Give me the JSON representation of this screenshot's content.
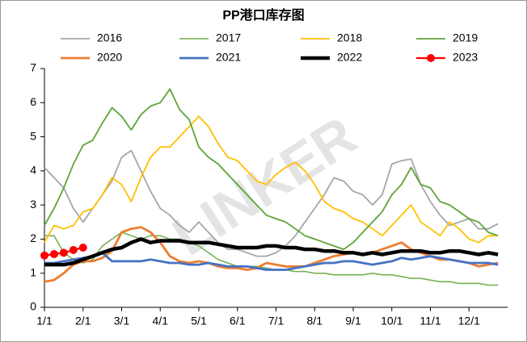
{
  "chart_data": {
    "type": "line",
    "title": "PP港口库存图",
    "watermark": "LINKER",
    "categories": [
      "1/1",
      null,
      null,
      null,
      "2/1",
      null,
      null,
      null,
      "3/1",
      null,
      null,
      null,
      "4/1",
      null,
      null,
      null,
      "5/1",
      null,
      null,
      null,
      "6/1",
      null,
      null,
      null,
      "7/1",
      null,
      null,
      null,
      "8/1",
      null,
      null,
      null,
      "9/1",
      null,
      null,
      null,
      "10/1",
      null,
      null,
      null,
      "11/1",
      null,
      null,
      null,
      "12/1",
      null,
      null,
      null
    ],
    "ylim": [
      0,
      7
    ],
    "yticks": [
      0,
      1,
      2,
      3,
      4,
      5,
      6,
      7
    ],
    "grid": false,
    "series": [
      {
        "name": "2016",
        "color": "#a6a6a6",
        "width": 1.8,
        "values": [
          4.1,
          3.8,
          3.5,
          2.9,
          2.5,
          2.9,
          3.3,
          3.7,
          4.4,
          4.6,
          4.0,
          3.4,
          2.9,
          2.7,
          2.4,
          2.2,
          2.5,
          2.2,
          1.9,
          1.7,
          1.7,
          1.6,
          1.5,
          1.5,
          1.6,
          1.8,
          2.1,
          2.5,
          2.9,
          3.3,
          3.8,
          3.7,
          3.4,
          3.3,
          3.0,
          3.3,
          4.2,
          4.3,
          4.35,
          3.6,
          3.1,
          2.7,
          2.4,
          2.5,
          2.6,
          2.3,
          2.3,
          2.45
        ]
      },
      {
        "name": "2017",
        "color": "#70ad47",
        "width": 1.5,
        "values": [
          2.1,
          2.1,
          1.6,
          1.4,
          1.3,
          1.4,
          1.8,
          2.0,
          2.2,
          2.1,
          2.0,
          2.1,
          2.1,
          2.0,
          2.0,
          1.9,
          1.8,
          1.6,
          1.4,
          1.3,
          1.2,
          1.2,
          1.2,
          1.15,
          1.1,
          1.1,
          1.05,
          1.05,
          1.0,
          1.0,
          0.95,
          0.95,
          0.95,
          0.95,
          1.0,
          0.95,
          0.95,
          0.9,
          0.85,
          0.85,
          0.8,
          0.75,
          0.75,
          0.7,
          0.7,
          0.7,
          0.65,
          0.65
        ]
      },
      {
        "name": "2018",
        "color": "#ffc000",
        "width": 1.8,
        "values": [
          1.9,
          2.4,
          2.3,
          2.4,
          2.8,
          2.9,
          3.3,
          3.8,
          3.6,
          3.1,
          3.8,
          4.4,
          4.7,
          4.7,
          5.0,
          5.3,
          5.6,
          5.3,
          4.8,
          4.4,
          4.3,
          4.0,
          3.7,
          3.6,
          3.9,
          4.1,
          4.25,
          4.0,
          3.6,
          3.1,
          2.9,
          2.8,
          2.6,
          2.5,
          2.3,
          2.1,
          2.4,
          2.7,
          3.0,
          2.5,
          2.3,
          2.1,
          2.5,
          2.3,
          2.0,
          1.9,
          2.1,
          2.1
        ]
      },
      {
        "name": "2019",
        "color": "#5da537",
        "width": 1.8,
        "values": [
          2.4,
          2.9,
          3.5,
          4.2,
          4.75,
          4.9,
          5.4,
          5.85,
          5.6,
          5.2,
          5.65,
          5.9,
          6.0,
          6.4,
          5.8,
          5.5,
          4.7,
          4.4,
          4.2,
          3.9,
          3.6,
          3.3,
          3.0,
          2.7,
          2.6,
          2.5,
          2.3,
          2.1,
          2.0,
          1.9,
          1.8,
          1.7,
          1.9,
          2.2,
          2.5,
          2.8,
          3.3,
          3.6,
          4.1,
          3.6,
          3.5,
          3.1,
          3.0,
          2.8,
          2.6,
          2.5,
          2.2,
          2.1
        ]
      },
      {
        "name": "2020",
        "color": "#ed7d31",
        "width": 2.8,
        "values": [
          0.75,
          0.8,
          1.0,
          1.25,
          1.35,
          1.35,
          1.45,
          1.65,
          2.2,
          2.3,
          2.35,
          2.2,
          1.9,
          1.5,
          1.35,
          1.3,
          1.35,
          1.3,
          1.2,
          1.15,
          1.15,
          1.1,
          1.15,
          1.3,
          1.25,
          1.2,
          1.2,
          1.2,
          1.3,
          1.4,
          1.5,
          1.55,
          1.6,
          1.55,
          1.6,
          1.7,
          1.8,
          1.9,
          1.7,
          1.6,
          1.5,
          1.4,
          1.4,
          1.35,
          1.3,
          1.2,
          1.25,
          1.3
        ]
      },
      {
        "name": "2021",
        "color": "#4472c4",
        "width": 2.8,
        "values": [
          1.3,
          1.3,
          1.35,
          1.4,
          1.45,
          1.5,
          1.6,
          1.35,
          1.35,
          1.35,
          1.35,
          1.4,
          1.35,
          1.3,
          1.3,
          1.25,
          1.25,
          1.3,
          1.25,
          1.2,
          1.2,
          1.2,
          1.15,
          1.1,
          1.1,
          1.1,
          1.15,
          1.2,
          1.25,
          1.3,
          1.3,
          1.35,
          1.35,
          1.3,
          1.25,
          1.3,
          1.35,
          1.45,
          1.4,
          1.45,
          1.5,
          1.45,
          1.4,
          1.35,
          1.3,
          1.3,
          1.3,
          1.25
        ]
      },
      {
        "name": "2022",
        "color": "#000000",
        "width": 4.5,
        "values": [
          1.25,
          1.25,
          1.25,
          1.3,
          1.4,
          1.5,
          1.6,
          1.7,
          1.75,
          1.9,
          2.0,
          1.9,
          1.95,
          1.95,
          1.95,
          1.9,
          1.9,
          1.9,
          1.85,
          1.8,
          1.75,
          1.75,
          1.75,
          1.8,
          1.8,
          1.75,
          1.75,
          1.7,
          1.7,
          1.65,
          1.65,
          1.6,
          1.6,
          1.55,
          1.6,
          1.55,
          1.6,
          1.65,
          1.65,
          1.65,
          1.6,
          1.6,
          1.65,
          1.65,
          1.6,
          1.55,
          1.6,
          1.55
        ]
      },
      {
        "name": "2023",
        "color": "#ff0000",
        "width": 2.2,
        "marker": true,
        "values": [
          1.52,
          1.56,
          1.6,
          1.68,
          1.75,
          null,
          null,
          null,
          null,
          null,
          null,
          null,
          null,
          null,
          null,
          null,
          null,
          null,
          null,
          null,
          null,
          null,
          null,
          null,
          null,
          null,
          null,
          null,
          null,
          null,
          null,
          null,
          null,
          null,
          null,
          null,
          null,
          null,
          null,
          null,
          null,
          null,
          null,
          null,
          null,
          null,
          null,
          null
        ]
      }
    ]
  }
}
